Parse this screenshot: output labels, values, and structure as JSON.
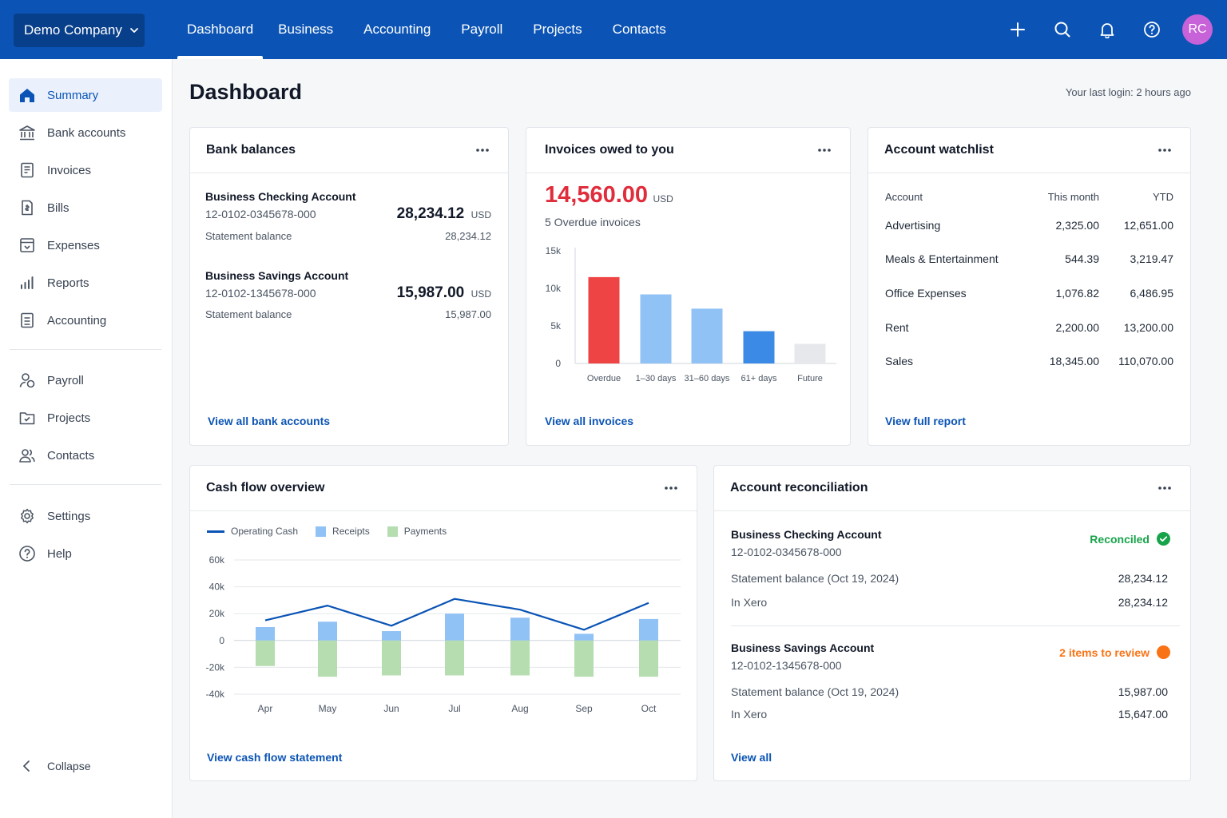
{
  "colors": {
    "brand": "#0b54b5",
    "brand_dark": "#083f8a",
    "danger": "#ef4444",
    "success": "#16a34a",
    "warning": "#f97316",
    "avatar": "#c762d8"
  },
  "header": {
    "org_name": "Demo Company",
    "tabs": [
      "Dashboard",
      "Business",
      "Accounting",
      "Payroll",
      "Projects",
      "Contacts"
    ],
    "active_tab": "Dashboard",
    "icons": [
      "plus-icon",
      "search-icon",
      "bell-icon",
      "help-icon"
    ],
    "avatar_initials": "RC"
  },
  "sidebar": {
    "items": [
      {
        "label": "Summary",
        "icon": "home-icon",
        "active": true
      },
      {
        "label": "Bank accounts",
        "icon": "bank-icon"
      },
      {
        "label": "Invoices",
        "icon": "invoice-icon"
      },
      {
        "label": "Bills",
        "icon": "bill-icon"
      },
      {
        "label": "Expenses",
        "icon": "expenses-icon"
      },
      {
        "label": "Reports",
        "icon": "reports-icon"
      },
      {
        "label": "Accounting",
        "icon": "accounting-icon"
      },
      {
        "label": "Payroll",
        "icon": "payroll-icon"
      },
      {
        "label": "Projects",
        "icon": "projects-icon"
      },
      {
        "label": "Contacts",
        "icon": "contacts-icon"
      },
      {
        "label": "Settings",
        "icon": "gear-icon"
      },
      {
        "label": "Help",
        "icon": "help-icon"
      }
    ],
    "collapse_label": "Collapse"
  },
  "page": {
    "title": "Dashboard",
    "last_login": "Your last login: 2 hours ago"
  },
  "bank_balances": {
    "title": "Bank balances",
    "accounts": [
      {
        "name": "Business Checking Account",
        "number": "12-0102-0345678-000",
        "balance": "28,234.12",
        "currency": "USD",
        "statement_label": "Statement balance",
        "statement_balance": "28,234.12"
      },
      {
        "name": "Business Savings Account",
        "number": "12-0102-1345678-000",
        "balance": "15,987.00",
        "currency": "USD",
        "statement_label": "Statement balance",
        "statement_balance": "15,987.00"
      }
    ],
    "link": "View all bank accounts"
  },
  "invoices": {
    "title": "Invoices owed to you",
    "amount": "14,560.00",
    "currency": "USD",
    "subtitle": "5 Overdue invoices",
    "link": "View all invoices"
  },
  "watchlist": {
    "title": "Account watchlist",
    "columns": [
      "Account",
      "This month",
      "YTD"
    ],
    "rows": [
      [
        "Advertising",
        "2,325.00",
        "12,651.00"
      ],
      [
        "Meals & Entertainment",
        "544.39",
        "3,219.47"
      ],
      [
        "Office Expenses",
        "1,076.82",
        "6,486.95"
      ],
      [
        "Rent",
        "2,200.00",
        "13,200.00"
      ],
      [
        "Sales",
        "18,345.00",
        "110,070.00"
      ]
    ],
    "link": "View full report"
  },
  "cashflow": {
    "title": "Cash flow overview",
    "link": "View cash flow statement"
  },
  "reconciliation": {
    "title": "Account reconciliation",
    "accounts": [
      {
        "name": "Business Checking Account",
        "number": "12-0102-0345678-000",
        "status": "Reconciled",
        "status_color": "#16a34a",
        "statement_label": "Statement balance (Oct 19, 2024)",
        "statement_balance": "28,234.12",
        "xero_label": "In Xero",
        "xero_balance": "28,234.12"
      },
      {
        "name": "Business Savings Account",
        "number": "12-0102-1345678-000",
        "status": "2 items to review",
        "status_color": "#f97316",
        "statement_label": "Statement balance (Oct 19, 2024)",
        "statement_balance": "15,987.00",
        "xero_label": "In Xero",
        "xero_balance": "15,647.00"
      }
    ],
    "link": "View all"
  },
  "chart_data": [
    {
      "type": "bar",
      "categories": [
        "Overdue",
        "1–30 days",
        "31–60 days",
        "61+ days",
        "Future"
      ],
      "values": [
        11500,
        9200,
        7300,
        4300,
        2600
      ],
      "bar_colors": [
        "#ef4444",
        "#90c2f6",
        "#90c2f6",
        "#3b8ae6",
        "#e6e8eb"
      ],
      "yticks": [
        "15k",
        "10k",
        "5k",
        "0"
      ],
      "ylim": [
        0,
        15000
      ]
    },
    {
      "type": "bar",
      "categories": [
        "Apr",
        "May",
        "Jun",
        "Jul",
        "Aug",
        "Sep",
        "Oct"
      ],
      "series": [
        {
          "name": "Operating Cash",
          "type": "line",
          "color": "#0b54b5",
          "values": [
            15000,
            26000,
            11000,
            31000,
            23000,
            8000,
            28000
          ]
        },
        {
          "name": "Receipts",
          "type": "bar",
          "color": "#90c2f6",
          "values": [
            10000,
            14000,
            7000,
            20000,
            17000,
            5000,
            16000
          ]
        },
        {
          "name": "Payments",
          "type": "bar",
          "color": "#b5ddb0",
          "values": [
            -19000,
            -27000,
            -26000,
            -26000,
            -26000,
            -27000,
            -27000
          ]
        }
      ],
      "yticks": [
        "60k",
        "40k",
        "20k",
        "0",
        "-20k",
        "-40k"
      ],
      "ylim": [
        -40000,
        60000
      ]
    }
  ]
}
